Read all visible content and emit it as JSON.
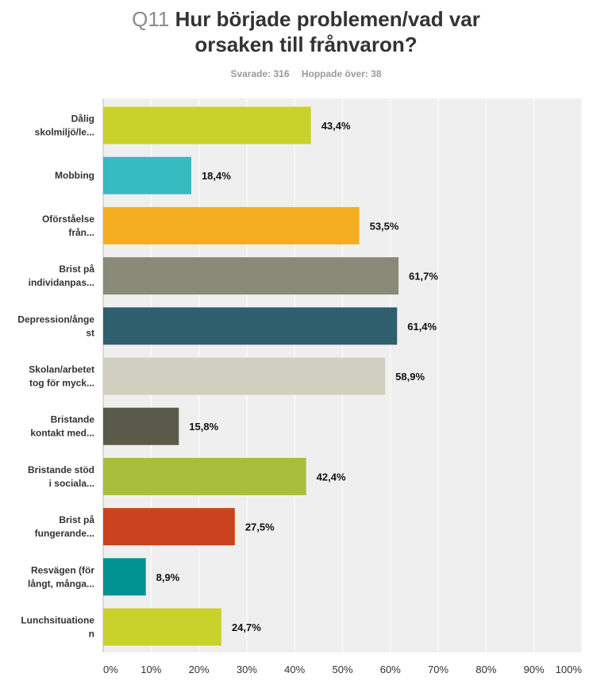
{
  "question": {
    "number": "Q11",
    "title_line1": "Hur började problemen/vad var",
    "title_line2": "orsaken till frånvaron?"
  },
  "stats": {
    "answered": "Svarade: 316",
    "skipped": "Hoppade över: 38"
  },
  "chart_data": {
    "type": "bar",
    "orientation": "horizontal",
    "categories": [
      [
        "Dålig",
        "skolmiljö/le..."
      ],
      [
        "Mobbing"
      ],
      [
        "Oförståelse",
        "från..."
      ],
      [
        "Brist på",
        "individanpas..."
      ],
      [
        "Depression/ånge",
        "st"
      ],
      [
        "Skolan/arbetet",
        "tog för myck..."
      ],
      [
        "Bristande",
        "kontakt med..."
      ],
      [
        "Bristande stöd",
        "i sociala..."
      ],
      [
        "Brist på",
        "fungerande..."
      ],
      [
        "Resvägen (för",
        "långt, många..."
      ],
      [
        "Lunchsituatione",
        "n"
      ]
    ],
    "values": [
      43.4,
      18.4,
      53.5,
      61.7,
      61.4,
      58.9,
      15.8,
      42.4,
      27.5,
      8.9,
      24.7
    ],
    "value_labels": [
      "43,4%",
      "18,4%",
      "53,5%",
      "61,7%",
      "61,4%",
      "58,9%",
      "15,8%",
      "42,4%",
      "27,5%",
      "8,9%",
      "24,7%"
    ],
    "colors": [
      "#c9d22a",
      "#36bcc0",
      "#f5ae1f",
      "#8a8a78",
      "#2f5f6d",
      "#d1cfc0",
      "#5a5a4a",
      "#a9bf3c",
      "#c9441e",
      "#009191",
      "#c9d22a"
    ],
    "xlim": [
      0,
      100
    ],
    "xticks": [
      "0%",
      "10%",
      "20%",
      "30%",
      "40%",
      "50%",
      "60%",
      "70%",
      "80%",
      "90%",
      "100%"
    ],
    "grid": true
  }
}
